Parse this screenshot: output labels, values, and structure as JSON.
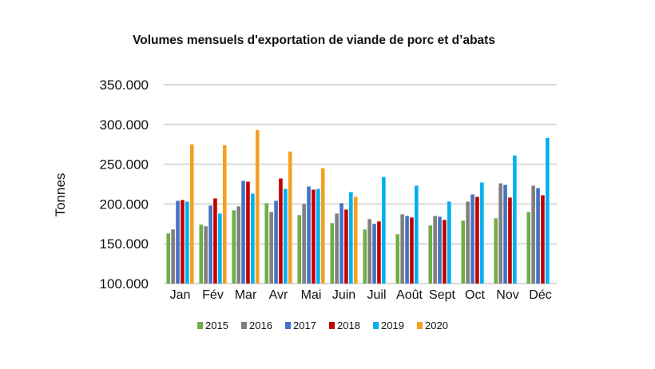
{
  "chart_data": {
    "type": "bar",
    "title": "Volumes mensuels d'exportation de viande de porc et d’abats",
    "ylabel": "Tonnes",
    "xlabel": "",
    "ylim": [
      100000,
      350000
    ],
    "yticks": [
      100000,
      150000,
      200000,
      250000,
      300000,
      350000
    ],
    "ytick_labels": [
      "100.000",
      "150.000",
      "200.000",
      "250.000",
      "300.000",
      "350.000"
    ],
    "grid": true,
    "legend_position": "bottom",
    "categories": [
      "Jan",
      "Fév",
      "Mar",
      "Avr",
      "Mai",
      "Juin",
      "Juil",
      "Août",
      "Sept",
      "Oct",
      "Nov",
      "Déc"
    ],
    "series": [
      {
        "name": "2015",
        "color": "#70ad47",
        "values": [
          163000,
          174000,
          192000,
          201000,
          186000,
          176000,
          168000,
          162000,
          173000,
          179000,
          182000,
          190000
        ]
      },
      {
        "name": "2016",
        "color": "#7f7f7f",
        "values": [
          168000,
          172000,
          197000,
          190000,
          200000,
          188000,
          181000,
          187000,
          185000,
          203000,
          226000,
          223000
        ]
      },
      {
        "name": "2017",
        "color": "#4472c4",
        "values": [
          204000,
          198000,
          229000,
          204000,
          222000,
          201000,
          175000,
          185000,
          184000,
          212000,
          224000,
          220000
        ]
      },
      {
        "name": "2018",
        "color": "#c00000",
        "values": [
          205000,
          207000,
          228000,
          232000,
          218000,
          193000,
          178000,
          183000,
          180000,
          209000,
          208000,
          211000
        ]
      },
      {
        "name": "2019",
        "color": "#00b0f0",
        "values": [
          203000,
          188000,
          213000,
          219000,
          219000,
          215000,
          234000,
          223000,
          203000,
          227000,
          261000,
          283000
        ]
      },
      {
        "name": "2020",
        "color": "#f4a023",
        "values": [
          275000,
          274000,
          293000,
          266000,
          245000,
          209000,
          null,
          null,
          null,
          null,
          null,
          null
        ]
      }
    ]
  }
}
